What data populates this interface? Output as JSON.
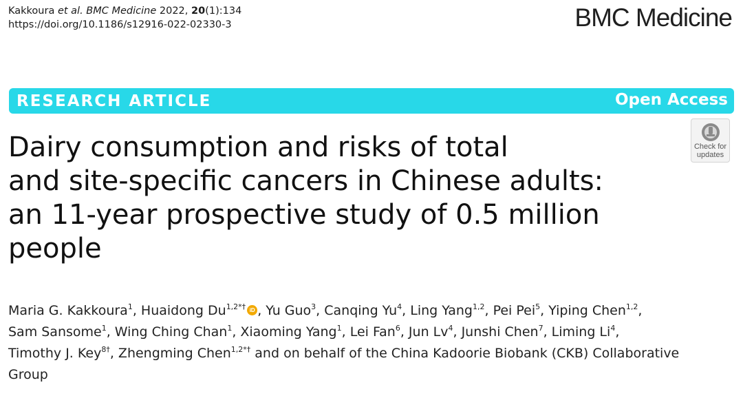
{
  "citation": {
    "authors_prefix": "Kakkoura ",
    "et_al": "et al.",
    "journal_italic": "BMC Medicine",
    "year": "2022, ",
    "volume": "20",
    "issue_pages": "(1):134",
    "doi": "https://doi.org/10.1186/s12916-022-02330-3"
  },
  "journal_logo": "BMC Medicine",
  "banner": {
    "article_type": "RESEARCH ARTICLE",
    "access": "Open Access",
    "color": "#28d8e8"
  },
  "check_for_updates": {
    "line1": "Check for",
    "line2": "updates",
    "icon": "check-for-updates-icon"
  },
  "title_lines": [
    "Dairy consumption and risks of total",
    "and site-specific cancers in Chinese adults:",
    "an 11-year prospective study of 0.5 million",
    "people"
  ],
  "authors": {
    "l1": {
      "a1": "Maria G. Kakkoura",
      "s1": "1",
      "c1": ", Huaidong Du",
      "s2": "1,2*†",
      "c2": ", Yu Guo",
      "s3": "3",
      "c3": ", Canqing Yu",
      "s4": "4",
      "c4": ", Ling Yang",
      "s5": "1,2",
      "c5": ", Pei Pei",
      "s6": "5",
      "c6": ", Yiping Chen",
      "s7": "1,2",
      "c7": ","
    },
    "l2": {
      "a1": "Sam Sansome",
      "s1": "1",
      "c1": ", Wing Ching Chan",
      "s2": "1",
      "c2": ", Xiaoming Yang",
      "s3": "1",
      "c3": ", Lei Fan",
      "s4": "6",
      "c4": ", Jun Lv",
      "s5": "4",
      "c5": ", Junshi Chen",
      "s6": "7",
      "c6": ", Liming Li",
      "s7": "4",
      "c7": ","
    },
    "l3": {
      "a1": "Timothy J. Key",
      "s1": "8†",
      "c1": ", Zhengming Chen",
      "s2": "1,2*†",
      "c2": " and on behalf of the China Kadoorie Biobank (CKB) Collaborative"
    },
    "l4": "Group",
    "orcid_label": "iD"
  }
}
